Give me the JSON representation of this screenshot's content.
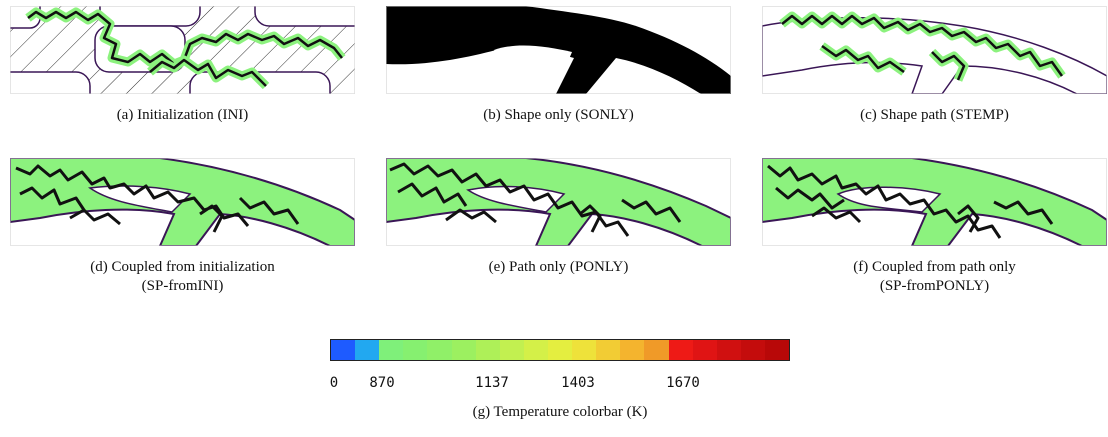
{
  "captions": {
    "a": "(a) Initialization (INI)",
    "b": "(b) Shape only (SONLY)",
    "c": "(c) Shape path (STEMP)",
    "d_line1": "(d) Coupled from initialization",
    "d_line2": "(SP-fromINI)",
    "e": "(e) Path only (PONLY)",
    "f_line1": "(f) Coupled from path only",
    "f_line2": "(SP-fromPONLY)",
    "g": "(g) Temperature colorbar (K)"
  },
  "colorbar": {
    "ticks": [
      "0",
      "870",
      "1137",
      "1403",
      "1670"
    ],
    "colors": [
      "#1e5bff",
      "#22a8f0",
      "#7ff07a",
      "#86f070",
      "#90f068",
      "#9cf060",
      "#aef058",
      "#c2f050",
      "#d4f048",
      "#e4ee40",
      "#eee23a",
      "#f2cc34",
      "#f4b42e",
      "#f09a28",
      "#ee1a16",
      "#e01414",
      "#d01010",
      "#c40c0c",
      "#b80808"
    ]
  },
  "colors": {
    "outline": "#3a1656",
    "path": "#111111",
    "fill_green": "#8cf27e",
    "hatch": "#333333"
  }
}
